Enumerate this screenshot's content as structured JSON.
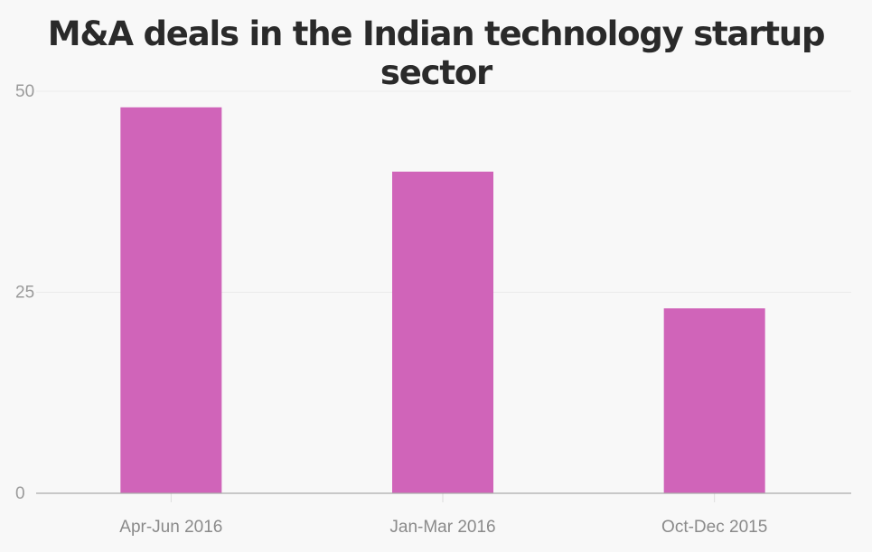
{
  "chart_data": {
    "type": "bar",
    "title": "M&A deals in the Indian technology startup sector",
    "categories": [
      "Apr-Jun 2016",
      "Jan-Mar 2016",
      "Oct-Dec 2015"
    ],
    "values": [
      48,
      40,
      23
    ],
    "ylim": [
      0,
      50
    ],
    "yticks": [
      0,
      25,
      50
    ],
    "xlabel": "",
    "ylabel": "",
    "grid": true,
    "colors": {
      "bar": "#d064b9",
      "grid": "#ebebeb",
      "axis": "#aaaaaa"
    }
  }
}
